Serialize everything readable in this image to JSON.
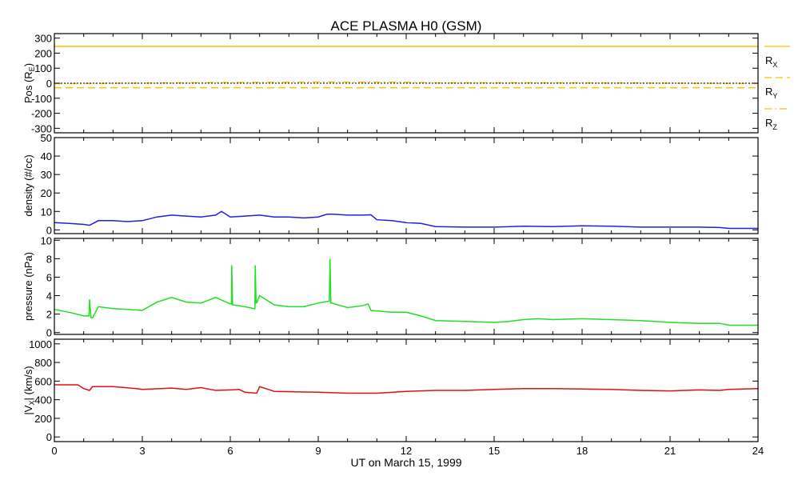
{
  "chart_data": {
    "type": "line",
    "title": "ACE PLASMA H0 (GSM)",
    "xlabel": "UT on March 15, 1999",
    "xlim": [
      0,
      24
    ],
    "xticks": [
      0,
      3,
      6,
      9,
      12,
      15,
      18,
      21,
      24
    ],
    "panels": [
      {
        "ylabel": "Pos (R",
        "ylabel_sub": "E",
        "ylabel_end": ")",
        "ylim": [
          -330,
          330
        ],
        "yticks": [
          300,
          200,
          100,
          0,
          -100,
          -200,
          -300
        ],
        "series": [
          {
            "name": "R",
            "sub": "X",
            "color": "#f5c400",
            "dash": "solid",
            "x": [
              0,
              24
            ],
            "y": [
              245,
              245
            ]
          },
          {
            "name": "R",
            "sub": "Y",
            "color": "#f5c400",
            "dash": "dashed",
            "x": [
              0,
              24
            ],
            "y": [
              -30,
              -30
            ]
          },
          {
            "name": "R",
            "sub": "Z",
            "color": "#f5c400",
            "dash": "dashdot",
            "x": [
              0,
              4,
              6,
              9,
              12,
              13,
              16,
              20,
              24
            ],
            "y": [
              -3,
              2,
              5,
              8,
              7,
              2,
              3,
              1,
              -2
            ]
          }
        ],
        "zero_line": true
      },
      {
        "ylabel": "density (#/cc)",
        "ylim": [
          -2,
          50
        ],
        "yticks": [
          50,
          40,
          30,
          20,
          10,
          0
        ],
        "series": [
          {
            "name": "density",
            "color": "#2020e0",
            "x": [
              0,
              0.5,
              1,
              1.2,
              1.5,
              2,
              2.5,
              3,
              3.5,
              4,
              4.5,
              5,
              5.5,
              5.7,
              6,
              6.5,
              7,
              7.5,
              8,
              8.5,
              9,
              9.3,
              9.5,
              10,
              10.5,
              10.8,
              11,
              11.5,
              12,
              12.5,
              13,
              14,
              15,
              16,
              17,
              18,
              19,
              20,
              21,
              22,
              22.7,
              23,
              23.5,
              24
            ],
            "y": [
              4,
              3.5,
              3,
              2.5,
              5,
              5,
              4.5,
              5,
              7,
              8,
              7.5,
              7,
              8,
              10,
              7,
              7.5,
              8,
              7,
              7,
              6.5,
              7,
              8.5,
              8.5,
              8,
              8,
              8.2,
              5.5,
              5,
              4,
              3.5,
              1.8,
              1.5,
              1.5,
              2,
              1.8,
              2.2,
              2,
              1.5,
              1.5,
              1.5,
              1.3,
              0.8,
              0.8,
              0.8
            ]
          }
        ]
      },
      {
        "ylabel": "pressure (nPa)",
        "ylim": [
          -0.2,
          10.2
        ],
        "yticks": [
          10,
          8,
          6,
          4,
          2,
          0
        ],
        "series": [
          {
            "name": "pressure",
            "color": "#20e020",
            "x": [
              0,
              0.5,
              1,
              1.18,
              1.2,
              1.25,
              1.3,
              1.5,
              2,
              2.5,
              3,
              3.5,
              4,
              4.5,
              5,
              5.5,
              6,
              6.04,
              6.05,
              6.08,
              6.1,
              6.5,
              6.8,
              6.84,
              6.85,
              6.88,
              6.9,
              7,
              7.5,
              8,
              8.5,
              9,
              9.35,
              9.38,
              9.4,
              9.43,
              9.45,
              10,
              10.5,
              10.7,
              10.8,
              11.5,
              12,
              12.5,
              13,
              14,
              15,
              15.5,
              16,
              16.5,
              17,
              18,
              19,
              20,
              21,
              22,
              22.7,
              23,
              23.5,
              24
            ],
            "y": [
              2.5,
              2.2,
              1.8,
              1.8,
              3.6,
              1.6,
              1.6,
              2.8,
              2.6,
              2.5,
              2.4,
              3.3,
              3.8,
              3.3,
              3.2,
              3.8,
              3.1,
              3.1,
              7.3,
              3.0,
              3.0,
              2.8,
              2.6,
              2.6,
              7.3,
              3.2,
              3.2,
              4,
              3,
              2.8,
              2.8,
              3.2,
              3.4,
              3.4,
              8,
              3.2,
              3.2,
              2.7,
              2.9,
              3.1,
              2.4,
              2.2,
              2.2,
              1.8,
              1.3,
              1.2,
              1.1,
              1.2,
              1.4,
              1.5,
              1.4,
              1.5,
              1.4,
              1.3,
              1.1,
              1.0,
              1.0,
              0.8,
              0.8,
              0.8
            ]
          }
        ]
      },
      {
        "ylabel": "|V",
        "ylabel_sub": "X",
        "ylabel_end": "| (km/s)",
        "ylim": [
          -50,
          1050
        ],
        "yticks": [
          1000,
          800,
          600,
          400,
          200,
          0
        ],
        "series": [
          {
            "name": "Vx",
            "color": "#e01010",
            "x": [
              0,
              0.8,
              1,
              1.2,
              1.3,
              2,
              2.8,
              3,
              4,
              4.5,
              5,
              5.5,
              6,
              6.3,
              6.5,
              6.9,
              7,
              7.3,
              7.5,
              9,
              10,
              11,
              12,
              13,
              14,
              15,
              16,
              17,
              18,
              19,
              20,
              21,
              22,
              22.7,
              23,
              24
            ],
            "y": [
              560,
              560,
              520,
              500,
              540,
              540,
              520,
              510,
              525,
              510,
              530,
              500,
              505,
              510,
              480,
              470,
              540,
              510,
              490,
              480,
              470,
              470,
              490,
              500,
              500,
              510,
              520,
              520,
              515,
              510,
              500,
              495,
              505,
              500,
              510,
              520
            ]
          }
        ]
      }
    ]
  }
}
